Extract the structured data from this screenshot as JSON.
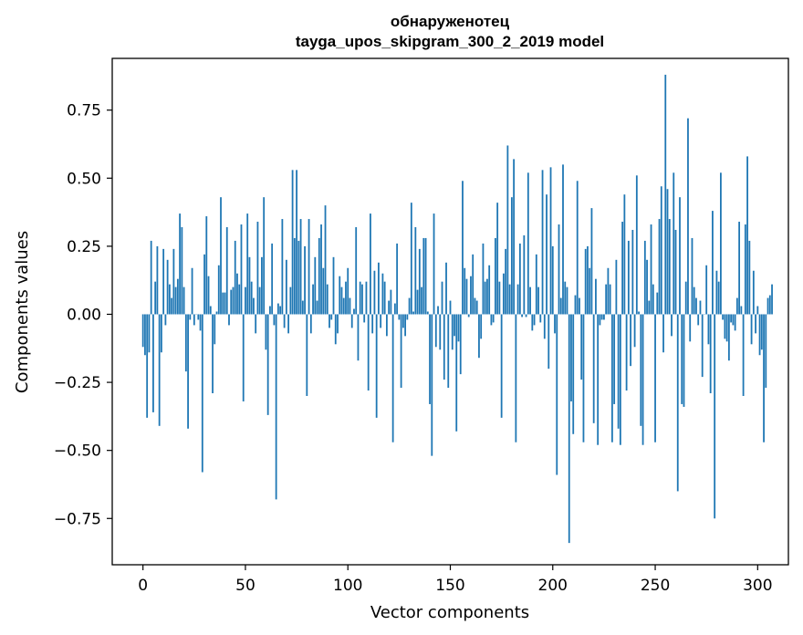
{
  "chart_data": {
    "type": "bar",
    "title": "обнаруженотец",
    "subtitle": "tayga_upos_skipgram_300_2_2019 model",
    "xlabel": "Vector components",
    "ylabel": "Components values",
    "xlim": [
      -15,
      315
    ],
    "ylim": [
      -0.92,
      0.94
    ],
    "xticks": [
      0,
      50,
      100,
      150,
      200,
      250,
      300
    ],
    "xtick_labels": [
      "0",
      "50",
      "100",
      "150",
      "200",
      "250",
      "300"
    ],
    "yticks": [
      -0.75,
      -0.5,
      -0.25,
      0.0,
      0.25,
      0.5,
      0.75
    ],
    "ytick_labels": [
      "−0.75",
      "−0.50",
      "−0.25",
      "0.00",
      "0.25",
      "0.50",
      "0.75"
    ],
    "grid": false,
    "legend": "none",
    "bar_color": "#1f77b4",
    "values": [
      -0.12,
      -0.15,
      -0.38,
      -0.14,
      0.27,
      -0.36,
      0.12,
      0.25,
      -0.41,
      -0.14,
      0.24,
      -0.04,
      0.2,
      0.11,
      0.06,
      0.24,
      0.1,
      0.13,
      0.37,
      0.32,
      0.1,
      -0.21,
      -0.42,
      -0.02,
      0.17,
      -0.04,
      0.0,
      -0.02,
      -0.06,
      -0.58,
      0.22,
      0.36,
      0.14,
      0.03,
      -0.29,
      -0.11,
      0.01,
      0.18,
      0.43,
      0.08,
      0.08,
      0.32,
      -0.04,
      0.09,
      0.1,
      0.27,
      0.15,
      0.11,
      0.33,
      -0.32,
      0.1,
      0.37,
      0.21,
      0.12,
      0.06,
      -0.07,
      0.34,
      0.1,
      0.21,
      0.43,
      -0.13,
      -0.37,
      0.03,
      0.26,
      -0.04,
      -0.68,
      0.04,
      0.03,
      0.35,
      -0.05,
      0.2,
      -0.07,
      0.1,
      0.53,
      0.28,
      0.53,
      0.27,
      0.35,
      0.05,
      0.25,
      -0.3,
      0.35,
      -0.07,
      0.11,
      0.21,
      0.05,
      0.28,
      0.33,
      0.17,
      0.4,
      0.11,
      -0.05,
      -0.02,
      0.21,
      -0.11,
      -0.07,
      0.14,
      0.1,
      0.06,
      0.12,
      0.17,
      0.06,
      -0.05,
      0.02,
      0.32,
      -0.17,
      0.12,
      0.11,
      -0.03,
      0.12,
      -0.28,
      0.37,
      -0.07,
      0.16,
      -0.38,
      0.19,
      -0.05,
      0.15,
      0.12,
      -0.08,
      0.05,
      0.09,
      -0.47,
      0.04,
      0.26,
      -0.02,
      -0.27,
      -0.05,
      -0.08,
      -0.02,
      0.06,
      0.41,
      0.01,
      0.32,
      0.09,
      0.24,
      0.1,
      0.28,
      0.28,
      0.01,
      -0.33,
      -0.52,
      0.37,
      -0.12,
      0.03,
      -0.13,
      0.12,
      -0.24,
      0.19,
      -0.27,
      0.05,
      -0.13,
      -0.08,
      -0.43,
      -0.1,
      -0.22,
      0.49,
      0.17,
      0.13,
      -0.01,
      0.14,
      0.22,
      0.06,
      0.05,
      -0.16,
      -0.09,
      0.26,
      0.12,
      0.13,
      0.18,
      -0.04,
      -0.03,
      0.28,
      0.41,
      0.12,
      -0.38,
      0.15,
      0.24,
      0.62,
      0.11,
      0.43,
      0.57,
      -0.47,
      0.11,
      0.26,
      -0.01,
      0.29,
      -0.01,
      0.52,
      0.1,
      -0.06,
      -0.04,
      0.22,
      0.1,
      -0.03,
      0.53,
      -0.09,
      0.44,
      -0.2,
      0.54,
      0.25,
      -0.07,
      -0.59,
      0.33,
      0.06,
      0.55,
      0.12,
      0.1,
      -0.84,
      -0.32,
      -0.44,
      0.07,
      0.49,
      0.06,
      -0.24,
      -0.47,
      0.24,
      0.25,
      0.17,
      0.39,
      -0.4,
      0.13,
      -0.48,
      -0.04,
      -0.02,
      -0.02,
      0.11,
      0.17,
      0.11,
      -0.47,
      -0.33,
      0.2,
      -0.42,
      -0.48,
      0.34,
      0.44,
      -0.28,
      0.27,
      -0.19,
      0.31,
      -0.12,
      0.51,
      0.01,
      -0.41,
      -0.48,
      0.27,
      0.2,
      0.05,
      0.33,
      0.11,
      -0.47,
      0.08,
      0.35,
      0.47,
      -0.14,
      0.88,
      0.46,
      0.35,
      -0.08,
      0.52,
      0.31,
      -0.65,
      0.43,
      -0.33,
      -0.34,
      0.12,
      0.72,
      -0.1,
      0.28,
      0.1,
      0.06,
      -0.04,
      0.05,
      -0.23,
      0.0,
      0.18,
      -0.11,
      -0.29,
      0.38,
      -0.75,
      0.16,
      0.12,
      0.52,
      -0.02,
      -0.09,
      -0.1,
      -0.17,
      -0.03,
      -0.04,
      -0.06,
      0.06,
      0.34,
      0.03,
      -0.3,
      0.33,
      0.58,
      0.27,
      -0.11,
      0.16,
      -0.07,
      0.03,
      -0.15,
      -0.13,
      -0.47,
      -0.27,
      0.06,
      0.07,
      0.11
    ]
  }
}
